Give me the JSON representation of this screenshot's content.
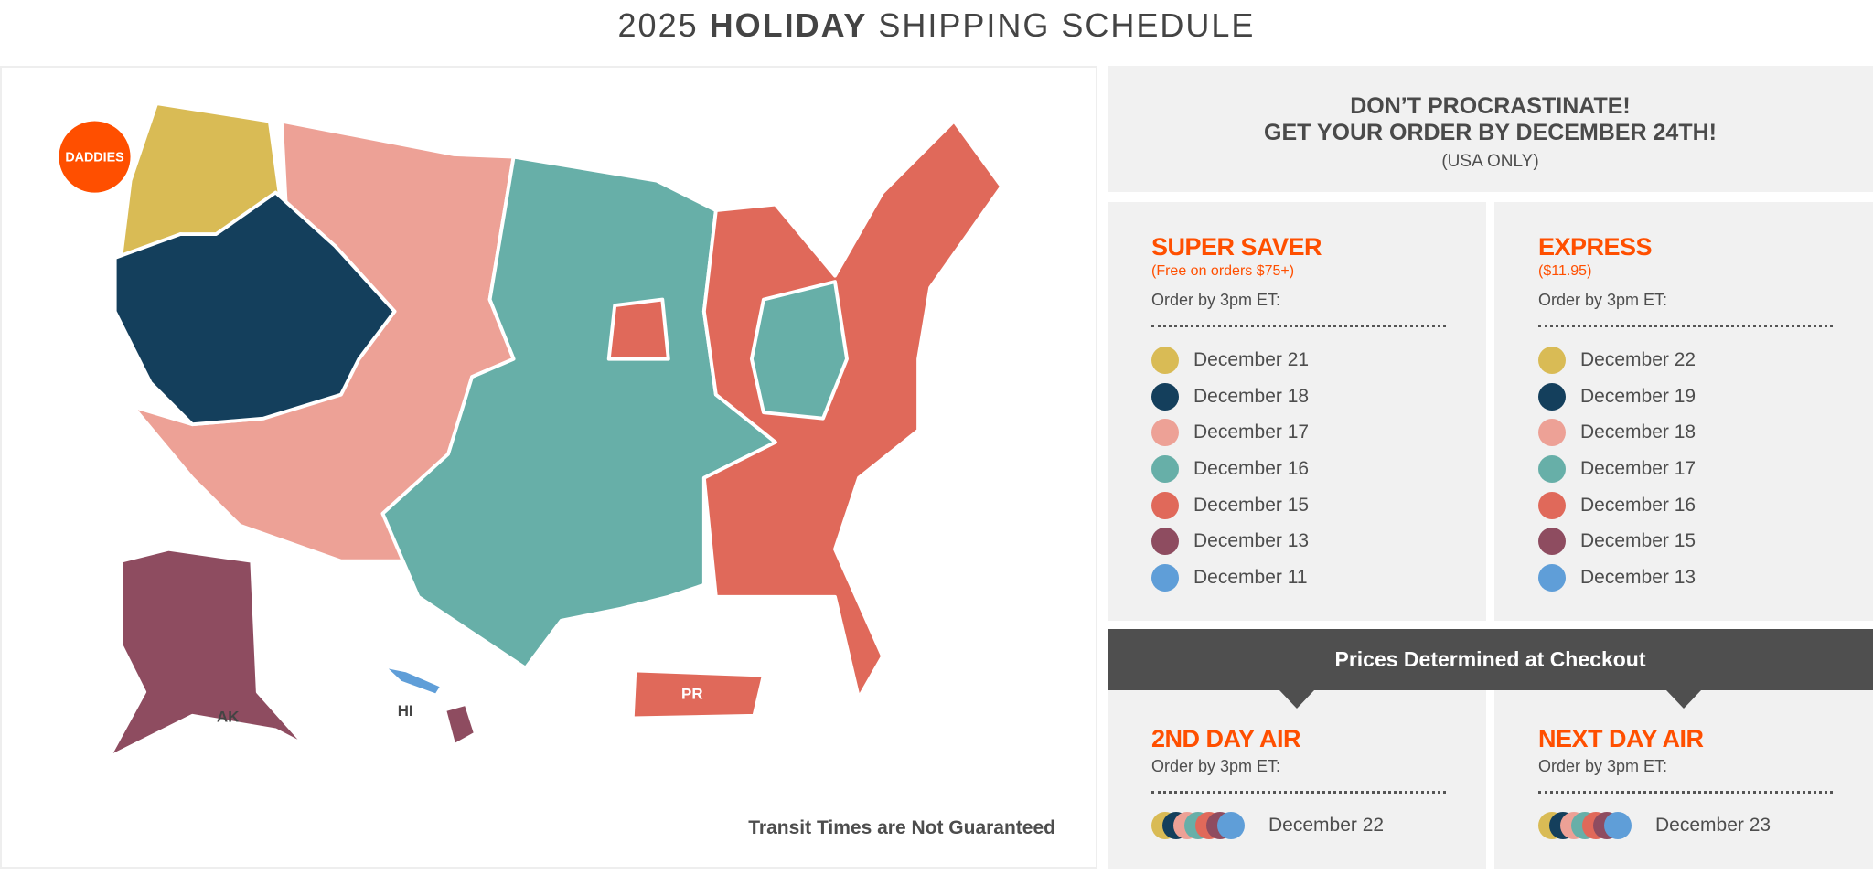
{
  "header": {
    "year": "2025",
    "bold": "HOLIDAY",
    "rest": "SHIPPING SCHEDULE"
  },
  "colors": {
    "brand": "#ff4f00",
    "yellow": "#d9bb55",
    "navy": "#143f5c",
    "pink": "#eda196",
    "teal": "#67afa8",
    "orange": "#e0695a",
    "plum": "#8e4c60",
    "blue": "#5f9ed8"
  },
  "map": {
    "logo": "DADDIES",
    "labels": {
      "ak": "AK",
      "hi": "HI",
      "pr": "PR"
    },
    "transit_note": "Transit Times are Not Guaranteed"
  },
  "banner": {
    "line1": "DON’T PROCRASTINATE!",
    "line2": "GET YOUR ORDER BY DECEMBER 24TH!",
    "note": "(USA ONLY)"
  },
  "super_saver": {
    "title": "SUPER SAVER",
    "subtitle": "(Free on orders $75+)",
    "order_by": "Order by 3pm ET:",
    "dates": [
      "December 21",
      "December 18",
      "December 17",
      "December 16",
      "December 15",
      "December 13",
      "December 11"
    ]
  },
  "express": {
    "title": "EXPRESS",
    "subtitle": "($11.95)",
    "order_by": "Order by 3pm ET:",
    "dates": [
      "December 22",
      "December 19",
      "December 18",
      "December 17",
      "December 16",
      "December 15",
      "December 13"
    ]
  },
  "prices_bar": "Prices Determined at Checkout",
  "second_day": {
    "title": "2ND DAY AIR",
    "order_by": "Order by 3pm ET:",
    "date": "December 22"
  },
  "next_day": {
    "title": "NEXT DAY AIR",
    "order_by": "Order by 3pm ET:",
    "date": "December 23"
  }
}
